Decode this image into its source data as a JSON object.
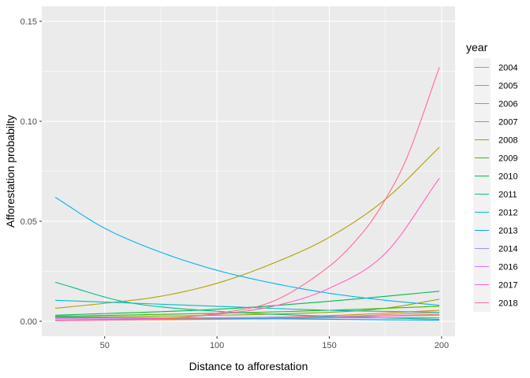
{
  "chart_data": {
    "type": "line",
    "xlabel": "Distance to afforestation",
    "ylabel": "Afforestation probabilty",
    "xlim": [
      22,
      206
    ],
    "ylim": [
      -0.0075,
      0.1575
    ],
    "x_ticks": [
      50,
      100,
      150,
      200
    ],
    "x_tick_labels": [
      "50",
      "100",
      "150",
      "200"
    ],
    "y_ticks": [
      0.0,
      0.05,
      0.1,
      0.15
    ],
    "y_tick_labels": [
      "0.00",
      "0.05",
      "0.10",
      "0.15"
    ],
    "grid": true,
    "legend_title": "year",
    "legend_position": "right",
    "series": [
      {
        "name": "2004",
        "color": "#F8766D",
        "x": [
          28,
          100,
          150,
          199
        ],
        "values": [
          0.0005,
          0.0012,
          0.0022,
          0.0045
        ]
      },
      {
        "name": "2005",
        "color": "#E7851E",
        "x": [
          28,
          100,
          150,
          199
        ],
        "values": [
          0.0004,
          0.001,
          0.0018,
          0.0035
        ]
      },
      {
        "name": "2006",
        "color": "#D09400",
        "x": [
          28,
          100,
          150,
          199
        ],
        "values": [
          0.0007,
          0.0015,
          0.0028,
          0.0055
        ]
      },
      {
        "name": "2007",
        "color": "#B2A100",
        "x": [
          28,
          50,
          75,
          100,
          125,
          150,
          175,
          199
        ],
        "values": [
          0.0065,
          0.009,
          0.0125,
          0.019,
          0.029,
          0.042,
          0.061,
          0.087
        ]
      },
      {
        "name": "2008",
        "color": "#89AC00",
        "x": [
          28,
          100,
          150,
          175,
          199
        ],
        "values": [
          0.002,
          0.003,
          0.0045,
          0.0065,
          0.011
        ]
      },
      {
        "name": "2009",
        "color": "#45B500",
        "x": [
          28,
          100,
          150,
          199
        ],
        "values": [
          0.0025,
          0.004,
          0.0055,
          0.0075
        ]
      },
      {
        "name": "2010",
        "color": "#00BC51",
        "x": [
          28,
          100,
          150,
          199
        ],
        "values": [
          0.003,
          0.006,
          0.01,
          0.015
        ]
      },
      {
        "name": "2011",
        "color": "#00C087",
        "x": [
          28,
          60,
          100,
          150,
          199
        ],
        "values": [
          0.0195,
          0.0095,
          0.005,
          0.0025,
          0.001
        ]
      },
      {
        "name": "2012",
        "color": "#00BDD0",
        "x": [
          28,
          100,
          150,
          199
        ],
        "values": [
          0.0105,
          0.0075,
          0.0055,
          0.0045
        ]
      },
      {
        "name": "2013",
        "color": "#00B4EF",
        "x": [
          28,
          50,
          75,
          100,
          125,
          150,
          175,
          199
        ],
        "values": [
          0.062,
          0.0465,
          0.0345,
          0.0255,
          0.019,
          0.014,
          0.0105,
          0.008
        ]
      },
      {
        "name": "2014",
        "color": "#00A5FF",
        "x": [
          28,
          100,
          150,
          199
        ],
        "values": [
          0.002,
          0.0015,
          0.001,
          0.0005
        ]
      },
      {
        "name": "2015",
        "color": "#6B9AFF",
        "x": [
          28,
          100,
          150,
          199
        ],
        "values": [
          0.0015,
          0.0016,
          0.0017,
          0.0018
        ]
      },
      {
        "name": "2016",
        "color": "#E76BF3",
        "x": [
          28,
          100,
          150,
          199
        ],
        "values": [
          0.0015,
          0.0018,
          0.0022,
          0.003
        ]
      },
      {
        "name": "2017",
        "color": "#FF61C6",
        "x": [
          28,
          75,
          100,
          125,
          150,
          175,
          199
        ],
        "values": [
          0.0005,
          0.0015,
          0.0035,
          0.0075,
          0.0165,
          0.034,
          0.0715
        ]
      },
      {
        "name": "2018",
        "color": "#FF6C91",
        "x": [
          28,
          75,
          100,
          125,
          150,
          165,
          175,
          185,
          199
        ],
        "values": [
          0.0003,
          0.0012,
          0.004,
          0.01,
          0.0275,
          0.0445,
          0.061,
          0.083,
          0.127
        ]
      }
    ],
    "legend_entries": [
      {
        "name": "2004",
        "color": "#F8766D"
      },
      {
        "name": "2005",
        "color": "#E7851E"
      },
      {
        "name": "2006",
        "color": "#D09400"
      },
      {
        "name": "2007",
        "color": "#B2A100"
      },
      {
        "name": "2008",
        "color": "#89AC00"
      },
      {
        "name": "2009",
        "color": "#45B500"
      },
      {
        "name": "2010",
        "color": "#00BC51"
      },
      {
        "name": "2011",
        "color": "#00C087"
      },
      {
        "name": "2012",
        "color": "#00BDD0"
      },
      {
        "name": "2013",
        "color": "#00A5FF"
      },
      {
        "name": "2014",
        "color": "#9590FF"
      },
      {
        "name": "2016",
        "color": "#D575FE"
      },
      {
        "name": "2017",
        "color": "#F962DD"
      },
      {
        "name": "2018",
        "color": "#FF65AC"
      }
    ],
    "colors": {
      "panel_background": "#EBEBEB",
      "grid_major": "#FFFFFF",
      "legend_key_background": "#F2F2F2"
    }
  }
}
